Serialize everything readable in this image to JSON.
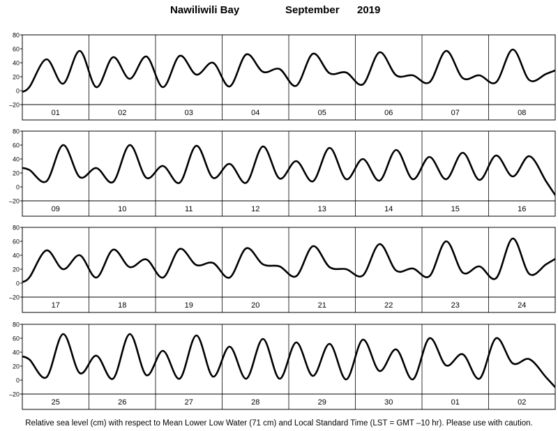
{
  "header": {
    "station": "Nawiliwili Bay",
    "month": "September",
    "year": "2019"
  },
  "footnote": "Relative sea level (cm) with respect to Mean Lower Low Water (71 cm) and Local Standard Time (LST = GMT –10 hr). Please use with caution.",
  "chart_data": {
    "type": "line",
    "ylim": [
      -20,
      80
    ],
    "yticks": [
      "80",
      "60",
      "40",
      "20",
      "0",
      "–20"
    ],
    "grid": "vertical day separators",
    "units": "cm",
    "panels": [
      {
        "days": [
          "01",
          "02",
          "03",
          "04",
          "05",
          "06",
          "07",
          "08"
        ],
        "points_per_day": 4,
        "values": [
          6,
          45,
          10,
          57,
          5,
          48,
          17,
          49,
          5,
          50,
          23,
          40,
          6,
          52,
          27,
          31,
          7,
          53,
          25,
          26,
          9,
          55,
          22,
          22,
          12,
          57,
          18,
          22,
          12,
          59,
          15,
          24
        ]
      },
      {
        "days": [
          "09",
          "10",
          "11",
          "12",
          "13",
          "14",
          "15",
          "16"
        ],
        "points_per_day": 4,
        "values": [
          24,
          8,
          60,
          14,
          27,
          7,
          60,
          13,
          30,
          6,
          59,
          13,
          33,
          6,
          58,
          12,
          37,
          8,
          56,
          11,
          40,
          9,
          53,
          11,
          43,
          11,
          49,
          10,
          45,
          15,
          44,
          8
        ]
      },
      {
        "days": [
          "17",
          "18",
          "19",
          "20",
          "21",
          "22",
          "23",
          "24"
        ],
        "points_per_day": 4,
        "values": [
          9,
          47,
          20,
          40,
          8,
          48,
          23,
          34,
          8,
          49,
          26,
          29,
          8,
          50,
          27,
          24,
          10,
          53,
          23,
          20,
          11,
          56,
          18,
          21,
          10,
          60,
          15,
          24,
          7,
          64,
          13,
          27
        ]
      },
      {
        "days": [
          "25",
          "26",
          "27",
          "28",
          "29",
          "30",
          "01",
          "02"
        ],
        "points_per_day": 4,
        "values": [
          29,
          4,
          66,
          10,
          35,
          2,
          66,
          7,
          42,
          2,
          64,
          5,
          48,
          2,
          59,
          2,
          54,
          6,
          52,
          1,
          58,
          13,
          44,
          1,
          60,
          21,
          37,
          2,
          60,
          24,
          30,
          4
        ]
      }
    ]
  }
}
